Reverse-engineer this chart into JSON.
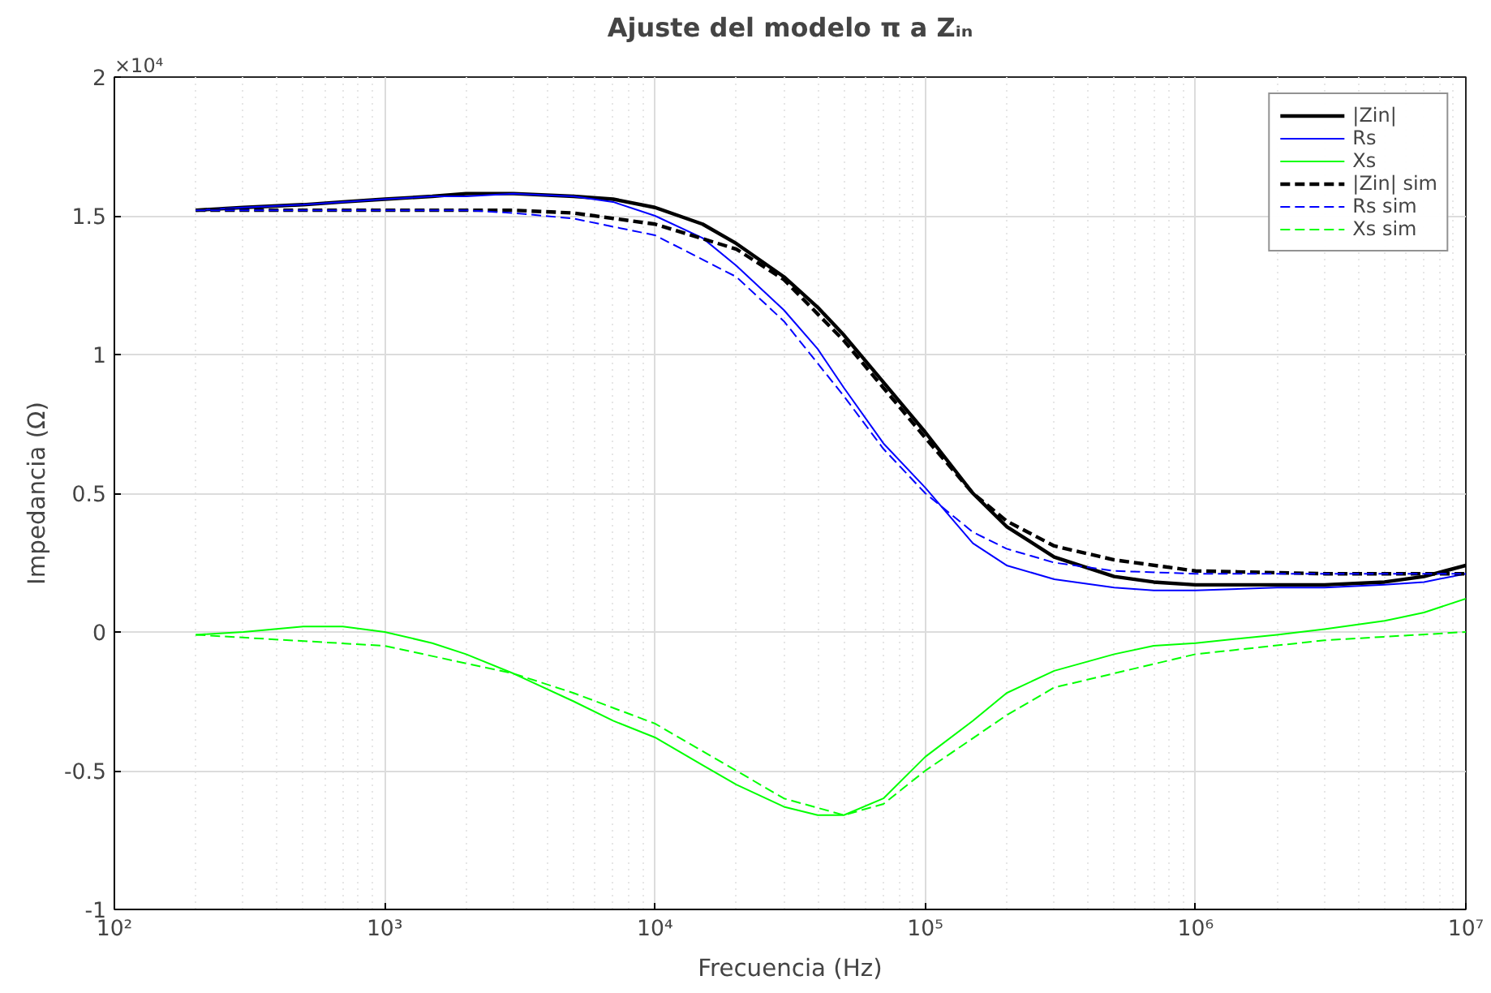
{
  "chart_data": {
    "type": "line",
    "title": "Ajuste del modelo π a Zᵢₙ",
    "xlabel": "Frecuencia (Hz)",
    "ylabel": "Impedancia (Ω)",
    "log": "x",
    "grid": true,
    "legend": "top right",
    "xlim": [
      100,
      10000000
    ],
    "ylim": [
      -1,
      2
    ],
    "xticks": [
      {
        "value": 100,
        "label": "10²"
      },
      {
        "value": 1000,
        "label": "10³"
      },
      {
        "value": 10000,
        "label": "10⁴"
      },
      {
        "value": 100000,
        "label": "10⁵"
      },
      {
        "value": 1000000,
        "label": "10⁶"
      },
      {
        "value": 10000000,
        "label": "10⁷"
      }
    ],
    "yticks": [
      -1,
      -0.5,
      0,
      0.5,
      1,
      1.5,
      2
    ],
    "annotations": [
      "×10⁴"
    ],
    "series": [
      {
        "name": "|Zin|",
        "color": "#000000",
        "line_style": "solid",
        "x": [
          200,
          300,
          500,
          700,
          1000,
          1500,
          2000,
          3000,
          5000,
          7000,
          10000,
          15000,
          20000,
          30000,
          40000,
          50000,
          70000,
          100000,
          150000,
          200000,
          300000,
          500000,
          700000,
          1000000,
          2000000,
          3000000,
          5000000,
          7000000,
          10000000
        ],
        "values": [
          1.52,
          1.53,
          1.54,
          1.55,
          1.56,
          1.57,
          1.58,
          1.58,
          1.57,
          1.56,
          1.53,
          1.47,
          1.4,
          1.28,
          1.17,
          1.07,
          0.9,
          0.72,
          0.5,
          0.38,
          0.27,
          0.2,
          0.18,
          0.17,
          0.17,
          0.17,
          0.18,
          0.2,
          0.24
        ]
      },
      {
        "name": "Rs",
        "color": "#0000ff",
        "line_style": "solid",
        "x": [
          200,
          300,
          500,
          700,
          1000,
          1500,
          2000,
          3000,
          5000,
          7000,
          10000,
          15000,
          20000,
          30000,
          40000,
          50000,
          70000,
          100000,
          150000,
          200000,
          300000,
          500000,
          700000,
          1000000,
          2000000,
          3000000,
          5000000,
          7000000,
          10000000
        ],
        "values": [
          1.52,
          1.53,
          1.54,
          1.55,
          1.56,
          1.57,
          1.57,
          1.58,
          1.57,
          1.55,
          1.5,
          1.42,
          1.32,
          1.16,
          1.02,
          0.88,
          0.68,
          0.52,
          0.32,
          0.24,
          0.19,
          0.16,
          0.15,
          0.15,
          0.16,
          0.16,
          0.17,
          0.18,
          0.21
        ]
      },
      {
        "name": "Xs",
        "color": "#00ff00",
        "line_style": "solid",
        "x": [
          200,
          300,
          500,
          700,
          1000,
          1500,
          2000,
          3000,
          5000,
          7000,
          10000,
          15000,
          20000,
          30000,
          40000,
          50000,
          70000,
          100000,
          150000,
          200000,
          300000,
          500000,
          700000,
          1000000,
          2000000,
          3000000,
          5000000,
          7000000,
          10000000
        ],
        "values": [
          -0.01,
          0.0,
          0.02,
          0.02,
          0.0,
          -0.04,
          -0.08,
          -0.15,
          -0.25,
          -0.32,
          -0.38,
          -0.48,
          -0.55,
          -0.63,
          -0.66,
          -0.66,
          -0.6,
          -0.45,
          -0.32,
          -0.22,
          -0.14,
          -0.08,
          -0.05,
          -0.04,
          -0.01,
          0.01,
          0.04,
          0.07,
          0.12
        ]
      },
      {
        "name": "|Zin| sim",
        "color": "#000000",
        "line_style": "dashed",
        "x": [
          200,
          1000,
          3000,
          5000,
          10000,
          20000,
          30000,
          50000,
          70000,
          100000,
          150000,
          200000,
          300000,
          500000,
          1000000,
          3000000,
          10000000
        ],
        "values": [
          1.52,
          1.52,
          1.52,
          1.51,
          1.47,
          1.38,
          1.27,
          1.05,
          0.88,
          0.7,
          0.5,
          0.4,
          0.31,
          0.26,
          0.22,
          0.21,
          0.21
        ]
      },
      {
        "name": "Rs sim",
        "color": "#0000ff",
        "line_style": "dashed",
        "x": [
          200,
          1000,
          2000,
          3000,
          5000,
          10000,
          20000,
          30000,
          50000,
          70000,
          100000,
          150000,
          200000,
          300000,
          500000,
          1000000,
          10000000
        ],
        "values": [
          1.52,
          1.52,
          1.52,
          1.51,
          1.49,
          1.43,
          1.28,
          1.12,
          0.85,
          0.66,
          0.5,
          0.36,
          0.3,
          0.25,
          0.22,
          0.21,
          0.21
        ]
      },
      {
        "name": "Xs sim",
        "color": "#00ff00",
        "line_style": "dashed",
        "x": [
          200,
          1000,
          3000,
          5000,
          10000,
          20000,
          30000,
          50000,
          70000,
          100000,
          200000,
          300000,
          1000000,
          3000000,
          10000000
        ],
        "values": [
          -0.01,
          -0.05,
          -0.15,
          -0.22,
          -0.33,
          -0.5,
          -0.6,
          -0.66,
          -0.62,
          -0.5,
          -0.3,
          -0.2,
          -0.08,
          -0.03,
          0.0
        ]
      }
    ]
  }
}
